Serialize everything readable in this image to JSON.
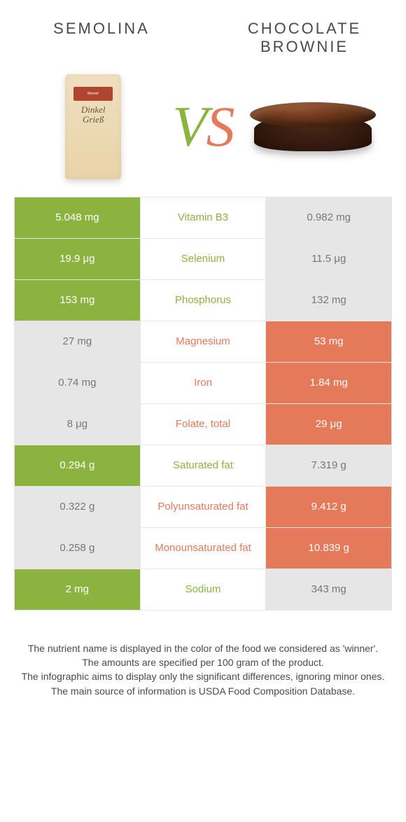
{
  "header": {
    "left": "SEMOLINA",
    "right_line1": "CHOCOLATE",
    "right_line2": "BROWNIE"
  },
  "vs": {
    "v": "V",
    "s": "S"
  },
  "bag": {
    "brand": "Mornin'",
    "text1": "Dinkel",
    "text2": "Grieß"
  },
  "colors": {
    "left": "#8cb340",
    "right": "#e57a5a",
    "neutral": "#e6e6e6",
    "mid_left": "#8cb340",
    "mid_right": "#e57a5a"
  },
  "rows": [
    {
      "left": "5.048 mg",
      "mid": "Vitamin B3",
      "right": "0.982 mg",
      "winner": "left"
    },
    {
      "left": "19.9 μg",
      "mid": "Selenium",
      "right": "11.5 μg",
      "winner": "left"
    },
    {
      "left": "153 mg",
      "mid": "Phosphorus",
      "right": "132 mg",
      "winner": "left"
    },
    {
      "left": "27 mg",
      "mid": "Magnesium",
      "right": "53 mg",
      "winner": "right"
    },
    {
      "left": "0.74 mg",
      "mid": "Iron",
      "right": "1.84 mg",
      "winner": "right"
    },
    {
      "left": "8 μg",
      "mid": "Folate, total",
      "right": "29 μg",
      "winner": "right"
    },
    {
      "left": "0.294 g",
      "mid": "Saturated fat",
      "right": "7.319 g",
      "winner": "left"
    },
    {
      "left": "0.322 g",
      "mid": "Polyunsaturated fat",
      "right": "9.412 g",
      "winner": "right"
    },
    {
      "left": "0.258 g",
      "mid": "Monounsaturated fat",
      "right": "10.839 g",
      "winner": "right"
    },
    {
      "left": "2 mg",
      "mid": "Sodium",
      "right": "343 mg",
      "winner": "left"
    }
  ],
  "footer": {
    "l1": "The nutrient name is displayed in the color of the food we considered as 'winner'.",
    "l2": "The amounts are specified per 100 gram of the product.",
    "l3": "The infographic aims to display only the significant differences, ignoring minor ones.",
    "l4": "The main source of information is USDA Food Composition Database."
  }
}
